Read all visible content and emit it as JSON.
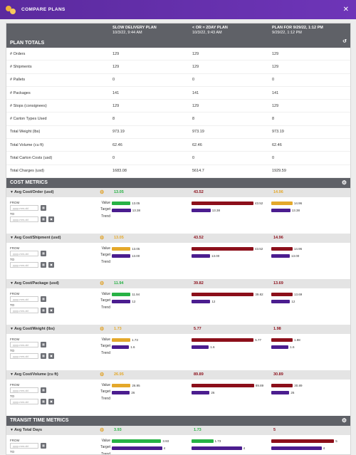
{
  "window": {
    "title": "COMPARE PLANS",
    "close_label": "✕"
  },
  "columns": [
    {
      "name": "SLOW DELIVERY PLAN",
      "date": "10/3/22, 9:44 AM"
    },
    {
      "name": "< OR = 2DAY PLAN",
      "date": "10/3/22, 9:43 AM"
    },
    {
      "name": "PLAN FOR 9/29/22, 1:12 PM",
      "date": "9/29/22, 1:12 PM"
    }
  ],
  "plan_totals": {
    "title": "PLAN TOTALS",
    "rows": [
      {
        "label": "# Orders",
        "values": [
          "129",
          "129",
          "129"
        ]
      },
      {
        "label": "# Shipments",
        "values": [
          "129",
          "129",
          "129"
        ]
      },
      {
        "label": "# Pallets",
        "values": [
          "0",
          "0",
          "0"
        ]
      },
      {
        "label": "# Packages",
        "values": [
          "141",
          "141",
          "141"
        ]
      },
      {
        "label": "# Stops (consignees)",
        "values": [
          "129",
          "129",
          "129"
        ]
      },
      {
        "label": "# Carton Types Used",
        "values": [
          "8",
          "8",
          "8"
        ]
      },
      {
        "label": "Total Weight (lbs)",
        "values": [
          "973.19",
          "973.19",
          "973.19"
        ]
      },
      {
        "label": "Total Volume (cu ft)",
        "values": [
          "62.46",
          "62.46",
          "62.46"
        ]
      },
      {
        "label": "Total Carton Costs (usd)",
        "values": [
          "0",
          "0",
          "0"
        ]
      },
      {
        "label": "Total Charges (usd)",
        "values": [
          "1683.08",
          "5614.7",
          "1929.59"
        ]
      }
    ]
  },
  "colors": {
    "green": "#27b245",
    "red": "#8c0f1a",
    "gold": "#e4a82a",
    "purple": "#4b1d8f"
  },
  "labels": {
    "value": "Value",
    "target": "Target",
    "trend": "Trend",
    "from": "FROM",
    "to": "TO",
    "date_placeholder": "yyyy-mm-dd"
  },
  "cost_metrics": {
    "title": "COST METRICS",
    "metrics": [
      {
        "name": "Avg Cost/Order (usd)",
        "max": 45,
        "values": [
          {
            "v": "13.05",
            "n": 13.05,
            "c": "green"
          },
          {
            "v": "43.52",
            "n": 43.52,
            "c": "red"
          },
          {
            "v": "14.96",
            "n": 14.96,
            "c": "gold"
          }
        ],
        "targets": [
          {
            "v": "13.38",
            "n": 13.38
          },
          {
            "v": "13.38",
            "n": 13.38
          },
          {
            "v": "13.38",
            "n": 13.38
          }
        ]
      },
      {
        "name": "Avg Cost/Shipment (usd)",
        "max": 45,
        "values": [
          {
            "v": "13.05",
            "n": 13.05,
            "c": "gold"
          },
          {
            "v": "43.52",
            "n": 43.52,
            "c": "red"
          },
          {
            "v": "14.96",
            "n": 14.96,
            "c": "red"
          }
        ],
        "targets": [
          {
            "v": "13.00",
            "n": 13.0
          },
          {
            "v": "13.00",
            "n": 13.0
          },
          {
            "v": "13.00",
            "n": 13.0
          }
        ]
      },
      {
        "name": "Avg Cost/Package (usd)",
        "max": 41,
        "values": [
          {
            "v": "11.94",
            "n": 11.94,
            "c": "green"
          },
          {
            "v": "39.82",
            "n": 39.82,
            "c": "red"
          },
          {
            "v": "13.69",
            "n": 13.69,
            "c": "red"
          }
        ],
        "targets": [
          {
            "v": "12",
            "n": 12
          },
          {
            "v": "12",
            "n": 12
          },
          {
            "v": "12",
            "n": 12
          }
        ]
      },
      {
        "name": "Avg Cost/Weight (lbs)",
        "max": 5.95,
        "values": [
          {
            "v": "1.73",
            "n": 1.73,
            "c": "gold"
          },
          {
            "v": "5.77",
            "n": 5.77,
            "c": "red"
          },
          {
            "v": "1.98",
            "n": 1.98,
            "c": "red"
          }
        ],
        "targets": [
          {
            "v": "1.6",
            "n": 1.6
          },
          {
            "v": "1.6",
            "n": 1.6
          },
          {
            "v": "1.6",
            "n": 1.6
          }
        ]
      },
      {
        "name": "Avg Cost/Volume (cu ft)",
        "max": 92,
        "values": [
          {
            "v": "26.95",
            "n": 26.95,
            "c": "gold"
          },
          {
            "v": "89.89",
            "n": 89.89,
            "c": "red"
          },
          {
            "v": "30.89",
            "n": 30.89,
            "c": "red"
          }
        ],
        "targets": [
          {
            "v": "26",
            "n": 26
          },
          {
            "v": "26",
            "n": 26
          },
          {
            "v": "26",
            "n": 26
          }
        ]
      }
    ]
  },
  "transit_metrics": {
    "title": "TRANSIT TIME METRICS",
    "metrics": [
      {
        "name": "Avg Total Days",
        "max": 5.1,
        "values": [
          {
            "v": "3.93",
            "n": 3.93,
            "c": "green"
          },
          {
            "v": "1.73",
            "n": 1.73,
            "c": "green"
          },
          {
            "v": "5",
            "n": 5,
            "c": "red"
          }
        ],
        "targets": [
          {
            "v": "4",
            "n": 4
          },
          {
            "v": "4",
            "n": 4
          },
          {
            "v": "4",
            "n": 4
          }
        ]
      }
    ]
  }
}
